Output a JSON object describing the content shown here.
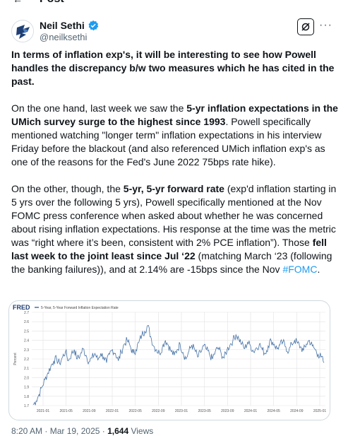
{
  "page": {
    "title": "Post"
  },
  "author": {
    "name": "Neil Sethi",
    "handle": "@neilksethi",
    "verified": true,
    "verified_color": "#1d9bf0"
  },
  "actions": {
    "grok_icon": "grok-icon",
    "more_label": "···"
  },
  "post": {
    "p1": "In terms of inflation exp's, it will be interesting to see how Powell handles the discrepancy b/w two measures which he has cited in the past.",
    "p2_a": "On the one hand, last week we saw the ",
    "p2_b": "5-yr inflation expectations in the UMich survey surge to the highest since 1993",
    "p2_c": ". Powell specifically mentioned watching \"longer term\" inflation expectations in his interview Friday before the blackout (and also referenced UMich inflation exp's as one of the reasons for the Fed's June 2022 75bps rate hike).",
    "p3_a": "On the other, though, the ",
    "p3_b": "5-yr, 5-yr forward rate",
    "p3_c": " (exp'd inflation starting in 5 yrs over the following 5 yrs), Powell specifically mentioned at the Nov FOMC press conference when asked about whether he was concerned about rising inflation expectations.  His response at the time was the metric was “right where it’s been, consistent with 2% PCE inflation”). Those ",
    "p3_d": "fell last week to the joint least since Jul ‘22",
    "p3_e": " (matching March ‘23 (following the banking failures)), and at 2.14% are -15bps since the Nov ",
    "p3_hashtag": "#FOMC",
    "p3_f": "."
  },
  "chart_data": {
    "type": "line",
    "source_logo": "FRED",
    "title": "5-Year, 5-Year Forward Inflation Expectation Rate",
    "ylabel": "Percent",
    "ylim": [
      1.7,
      2.7
    ],
    "yticks": [
      "2.7",
      "2.6",
      "2.5",
      "2.4",
      "2.3",
      "2.2",
      "2.1",
      "2.0",
      "1.9",
      "1.8",
      "1.7"
    ],
    "xticks": [
      "2021-01",
      "2021-05",
      "2021-09",
      "2022-01",
      "2022-05",
      "2022-09",
      "2023-01",
      "2023-05",
      "2023-09",
      "2024-01",
      "2024-05",
      "2024-09",
      "2025-01"
    ],
    "grid": true,
    "color": "#4572a7",
    "series": [
      {
        "values": [
          1.71,
          1.75,
          1.82,
          1.9,
          1.98,
          2.05,
          2.12,
          2.18,
          2.2,
          2.15,
          2.22,
          2.28,
          2.18,
          2.25,
          2.3,
          2.2,
          2.24,
          2.31,
          2.24,
          2.17,
          2.21,
          2.26,
          2.19,
          2.26,
          2.22,
          2.16,
          2.25,
          2.3,
          2.26,
          2.18,
          2.28,
          2.36,
          2.4,
          2.34,
          2.26,
          2.3,
          2.38,
          2.46,
          2.5,
          2.56,
          2.44,
          2.34,
          2.3,
          2.26,
          2.33,
          2.4,
          2.35,
          2.28,
          2.24,
          2.3,
          2.36,
          2.27,
          2.2,
          2.28,
          2.35,
          2.3,
          2.22,
          2.27,
          2.34,
          2.3,
          2.25,
          2.2,
          2.28,
          2.32,
          2.26,
          2.21,
          2.3,
          2.35,
          2.4,
          2.46,
          2.42,
          2.36,
          2.31,
          2.38,
          2.34,
          2.28,
          2.32,
          2.36,
          2.3,
          2.26,
          2.34,
          2.4,
          2.36,
          2.31,
          2.35,
          2.38,
          2.33,
          2.28,
          2.36,
          2.4,
          2.37,
          2.33,
          2.29,
          2.36,
          2.4,
          2.34,
          2.3,
          2.25,
          2.22,
          2.16
        ]
      }
    ]
  },
  "meta": {
    "time": "8:20 AM",
    "dot": " · ",
    "date": "Mar 19, 2025",
    "dot2": " · ",
    "views_count": "1,644",
    "views_label": " Views"
  }
}
